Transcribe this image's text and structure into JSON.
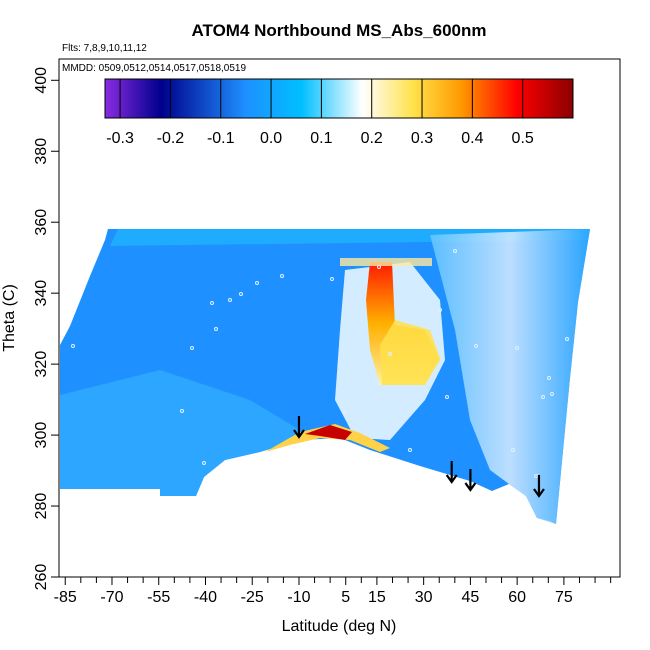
{
  "chart_data": {
    "type": "heatmap",
    "title": "ATOM4 Northbound MS_Abs_600nm",
    "subtitle_flights": "Flts: 7,8,9,10,11,12",
    "subtitle_dates": "MMDD: 0509,0512,0514,0517,0518,0519",
    "xlabel": "Latitude (deg N)",
    "ylabel": "Theta (C)",
    "xlim": [
      -87,
      93
    ],
    "ylim": [
      260,
      406
    ],
    "x_ticks": [
      -85,
      -70,
      -55,
      -40,
      -25,
      -10,
      5,
      15,
      30,
      45,
      60,
      75
    ],
    "y_ticks": [
      260,
      280,
      300,
      320,
      340,
      360,
      380,
      400
    ],
    "colorbar": {
      "range": [
        -0.33,
        0.6
      ],
      "ticks": [
        -0.3,
        -0.2,
        -0.1,
        0.0,
        0.1,
        0.2,
        0.3,
        0.4,
        0.5
      ],
      "tick_labels": [
        "-0.3",
        "-0.2",
        "-0.1",
        "0.0",
        "0.1",
        "0.2",
        "0.3",
        "0.4",
        "0.5"
      ],
      "colors": [
        "#7f1ae6",
        "#00008b",
        "#1e90ff",
        "#00bfff",
        "#ffffff",
        "#ffd700",
        "#ff8c00",
        "#ff0000",
        "#8b0000"
      ]
    },
    "arrows_latitude": [
      -10,
      39,
      45,
      67
    ],
    "colors": {
      "background_field": "#1e90ff",
      "high_plume": "#ffd700",
      "peak": "#ff0000"
    }
  }
}
